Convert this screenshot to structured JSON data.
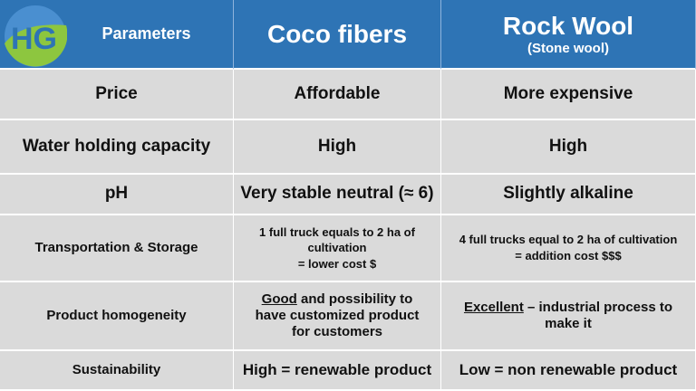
{
  "logo_text": "HG",
  "header": {
    "param": "Parameters",
    "coco": "Coco fibers",
    "rock": "Rock Wool",
    "rock_sub": "(Stone wool)"
  },
  "rows": [
    {
      "param": "Price",
      "coco": "Affordable",
      "rock": "More expensive"
    },
    {
      "param": "Water holding capacity",
      "coco": "High",
      "rock": "High"
    },
    {
      "param": "pH",
      "coco": "Very stable neutral (≈ 6)",
      "rock": "Slightly alkaline"
    },
    {
      "param": "Transportation & Storage",
      "coco_l1": "1 full truck equals to 2 ha of cultivation",
      "coco_l2": "= lower cost $",
      "rock_l1": "4 full trucks equal to 2 ha of cultivation",
      "rock_l2": "= addition cost $$$"
    },
    {
      "param": "Product homogeneity",
      "coco_u": "Good",
      "coco_rest": " and possibility to have customized product for customers",
      "rock_u": "Excellent",
      "rock_rest": " – industrial process to make it"
    },
    {
      "param": "Sustainability",
      "coco": "High = renewable product",
      "rock": "Low = non renewable product"
    }
  ]
}
